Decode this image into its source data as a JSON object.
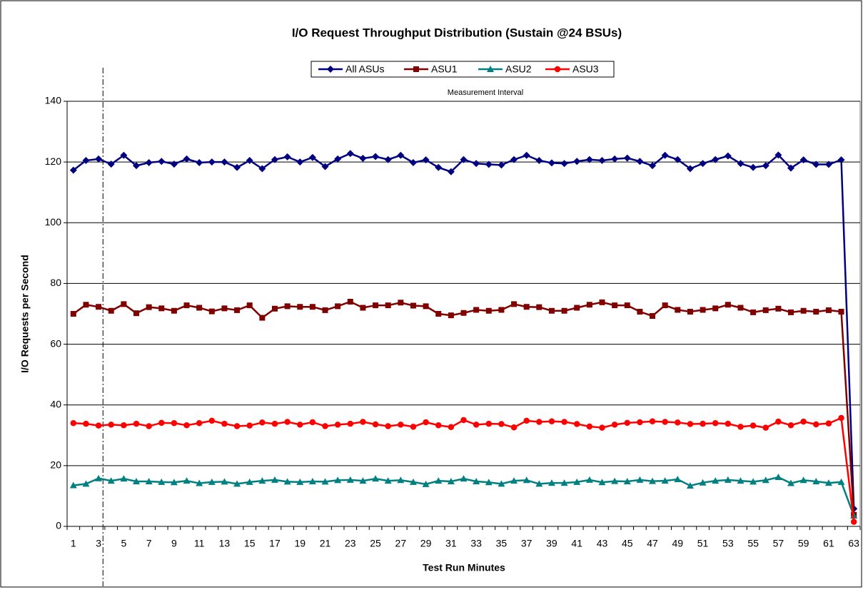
{
  "chart_data": {
    "type": "line",
    "title": "I/O Request Throughput Distribution (Sustain @24 BSUs)",
    "x_label": "Test Run Minutes",
    "y_label": "I/O Requests per Second",
    "annotation": {
      "text": "Measurement Interval",
      "x": 3.35
    },
    "categories": [
      1,
      null,
      3,
      null,
      5,
      null,
      7,
      null,
      9,
      null,
      11,
      null,
      13,
      null,
      15,
      null,
      17,
      null,
      19,
      null,
      21,
      null,
      23,
      null,
      25,
      null,
      27,
      null,
      29,
      null,
      31,
      null,
      33,
      null,
      35,
      null,
      37,
      null,
      39,
      null,
      41,
      null,
      43,
      null,
      45,
      null,
      47,
      null,
      49,
      null,
      51,
      null,
      53,
      null,
      55,
      null,
      57,
      null,
      59,
      null,
      61,
      null,
      63
    ],
    "series": [
      {
        "name": "All ASUs",
        "color": "#000080",
        "marker": "diamond",
        "values": [
          117.3,
          120.5,
          121,
          119.3,
          122.2,
          118.8,
          119.8,
          120.2,
          119.3,
          121,
          119.8,
          120,
          120,
          118.2,
          120.5,
          117.8,
          120.8,
          121.7,
          120,
          121.5,
          118.5,
          121,
          122.8,
          121.2,
          121.8,
          120.8,
          122.2,
          119.8,
          120.7,
          118.2,
          116.8,
          120.8,
          119.5,
          119.2,
          119,
          120.8,
          122.2,
          120.5,
          119.7,
          119.5,
          120.2,
          120.8,
          120.5,
          121,
          121.3,
          120.2,
          118.8,
          122.2,
          120.8,
          117.8,
          119.5,
          120.8,
          122,
          119.5,
          118.2,
          118.8,
          122.3,
          118,
          120.7,
          119.2,
          119.2,
          120.7,
          5.8
        ]
      },
      {
        "name": "ASU1",
        "color": "#800000",
        "marker": "square",
        "values": [
          70,
          73,
          72.3,
          71,
          73.2,
          70.2,
          72.2,
          71.8,
          71,
          72.8,
          72,
          70.8,
          71.8,
          71.2,
          72.8,
          68.7,
          71.7,
          72.5,
          72.3,
          72.3,
          71.2,
          72.5,
          74,
          72,
          72.8,
          72.8,
          73.7,
          72.7,
          72.5,
          70,
          69.5,
          70.3,
          71.3,
          71,
          71.3,
          73.2,
          72.3,
          72.2,
          71,
          71,
          72,
          73,
          73.8,
          72.8,
          72.8,
          70.7,
          69.3,
          72.8,
          71.3,
          70.7,
          71.3,
          71.8,
          73,
          72,
          70.5,
          71.2,
          71.7,
          70.5,
          71,
          70.7,
          71.2,
          70.7,
          3.8
        ]
      },
      {
        "name": "ASU2",
        "color": "#008080",
        "marker": "triangle",
        "values": [
          13.5,
          14,
          15.8,
          15,
          15.7,
          14.8,
          14.8,
          14.6,
          14.5,
          15,
          14.2,
          14.6,
          14.7,
          14,
          14.6,
          15,
          15.3,
          14.7,
          14.6,
          14.8,
          14.7,
          15.2,
          15.3,
          15,
          15.7,
          15,
          15.2,
          14.6,
          13.9,
          15,
          14.8,
          15.7,
          14.8,
          14.5,
          14,
          15,
          15.2,
          14,
          14.3,
          14.3,
          14.6,
          15.3,
          14.5,
          14.9,
          14.8,
          15.3,
          14.9,
          15,
          15.5,
          13.4,
          14.4,
          15,
          15.3,
          15,
          14.7,
          15.2,
          16.2,
          14.2,
          15.2,
          14.8,
          14.3,
          14.6,
          3.5
        ]
      },
      {
        "name": "ASU3",
        "color": "#ff0000",
        "marker": "circle",
        "values": [
          34,
          33.8,
          33.2,
          33.5,
          33.3,
          33.8,
          33,
          34.1,
          34,
          33.3,
          34,
          34.8,
          33.8,
          33,
          33.2,
          34.2,
          33.8,
          34.4,
          33.5,
          34.3,
          33,
          33.5,
          33.8,
          34.4,
          33.6,
          33,
          33.5,
          32.8,
          34.3,
          33.3,
          32.7,
          35,
          33.5,
          33.8,
          33.7,
          32.6,
          34.8,
          34.4,
          34.6,
          34.4,
          33.7,
          32.9,
          32.5,
          33.5,
          34.1,
          34.3,
          34.6,
          34.4,
          34.2,
          33.7,
          33.8,
          34,
          33.8,
          32.8,
          33.2,
          32.5,
          34.5,
          33.3,
          34.5,
          33.6,
          33.9,
          35.7,
          1.5
        ]
      }
    ],
    "ylim": [
      0,
      140
    ],
    "yticks": [
      0,
      20,
      40,
      60,
      80,
      100,
      120,
      140
    ],
    "grid": true
  }
}
